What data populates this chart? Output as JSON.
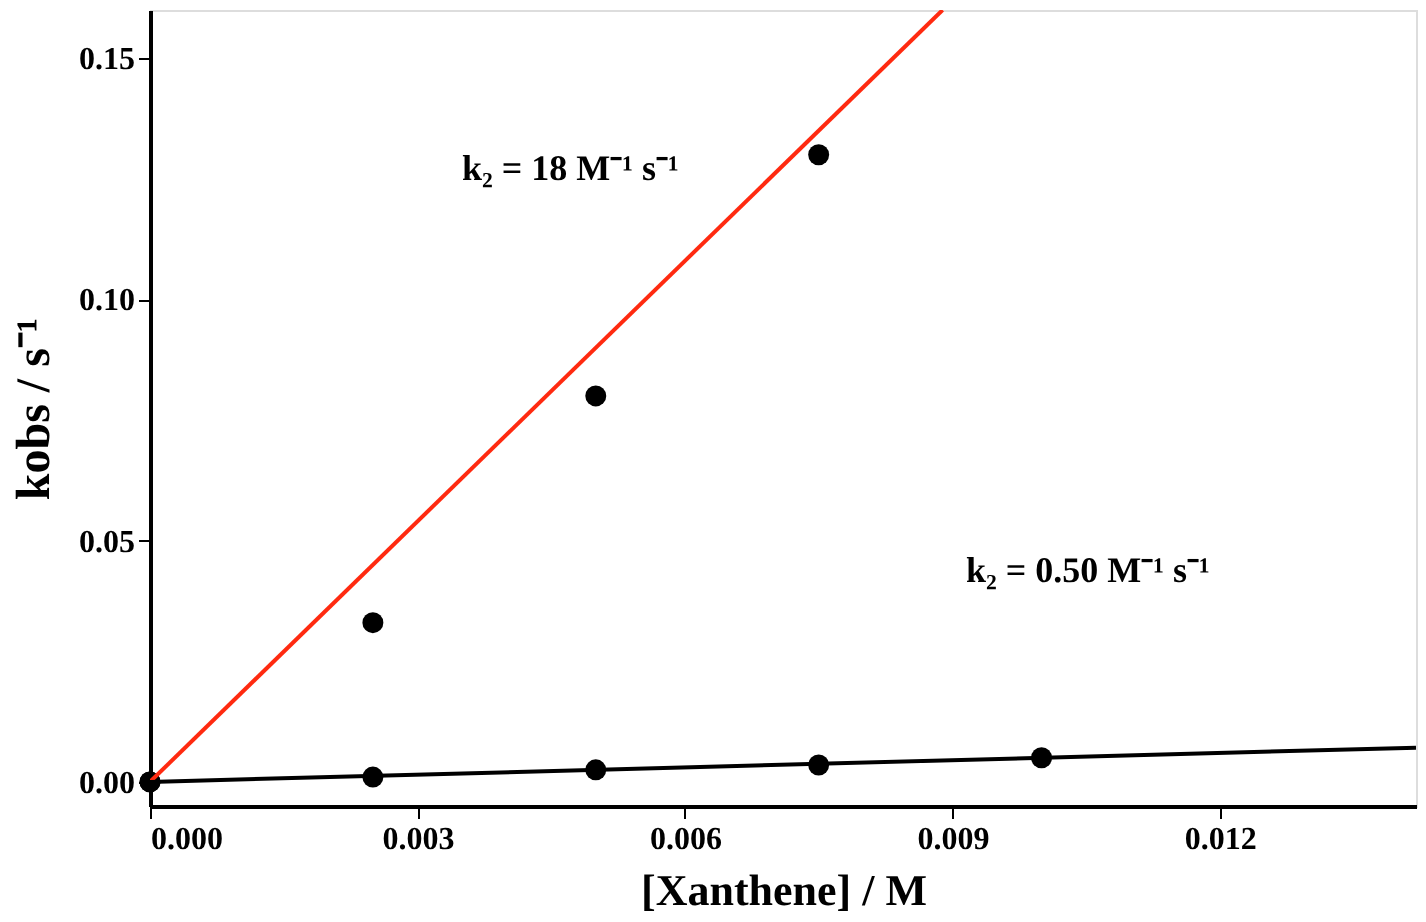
{
  "chart_data": {
    "type": "scatter",
    "xlabel": "[Xanthene] / M",
    "ylabel": "kobs / s⁻¹",
    "xlim": [
      0,
      0.0142
    ],
    "ylim": [
      -0.005,
      0.16
    ],
    "xticks": [
      {
        "value": 0,
        "label": "0.000"
      },
      {
        "value": 0.003,
        "label": "0.003"
      },
      {
        "value": 0.006,
        "label": "0.006"
      },
      {
        "value": 0.009,
        "label": "0.009"
      },
      {
        "value": 0.012,
        "label": "0.012"
      }
    ],
    "yticks": [
      {
        "value": 0,
        "label": "0.00"
      },
      {
        "value": 0.05,
        "label": "0.05"
      },
      {
        "value": 0.1,
        "label": "0.10"
      },
      {
        "value": 0.15,
        "label": "0.15"
      }
    ],
    "grid": false,
    "series": [
      {
        "marker": "circle",
        "color": "#000000",
        "x": [
          0,
          0.0025,
          0.005,
          0.0075
        ],
        "values": [
          0,
          0.033,
          0.08,
          0.13
        ]
      },
      {
        "marker": "circle",
        "color": "#000000",
        "x": [
          0,
          0.0025,
          0.005,
          0.0075,
          0.01
        ],
        "values": [
          0,
          0.001,
          0.0025,
          0.0035,
          0.005
        ]
      },
      {
        "type": "line",
        "line_style": "solid",
        "color": "#ff2a10",
        "x": [
          0,
          0.00889
        ],
        "values": [
          0,
          0.16
        ]
      },
      {
        "type": "line",
        "line_style": "solid",
        "color": "#000000",
        "x": [
          0,
          0.0142
        ],
        "values": [
          0,
          0.0071
        ]
      }
    ],
    "annotations": [
      "k₂ = 18 M⁻¹ s⁻¹",
      "k₂ = 0.50 M⁻¹ s⁻¹"
    ]
  }
}
